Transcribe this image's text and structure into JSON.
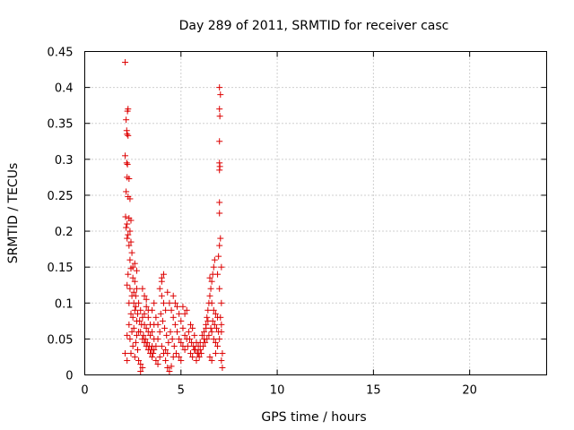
{
  "colors": {
    "point": "#dd0000",
    "grid": "#a0a0a0",
    "frame": "#000000",
    "background": "#ffffff"
  },
  "chart_data": {
    "type": "scatter",
    "title": "Day 289 of 2011, SRMTID for receiver casc",
    "xlabel": "GPS time / hours",
    "ylabel": "SRMTID / TECUs",
    "xlim": [
      0,
      24
    ],
    "ylim": [
      0,
      0.45
    ],
    "x_ticks": [
      0,
      5,
      10,
      15,
      20
    ],
    "x_tick_labels": [
      "0",
      "5",
      "10",
      "15",
      "20"
    ],
    "y_ticks": [
      0,
      0.05,
      0.1,
      0.15,
      0.2,
      0.25,
      0.3,
      0.35,
      0.4,
      0.45
    ],
    "y_tick_labels": [
      "0",
      "0.05",
      "0.1",
      "0.15",
      "0.2",
      "0.25",
      "0.3",
      "0.35",
      "0.4",
      "0.45"
    ],
    "grid": true,
    "marker": "plus",
    "series": [
      {
        "name": "SRMTID",
        "points": [
          [
            2.1,
            0.435
          ],
          [
            2.15,
            0.355
          ],
          [
            2.25,
            0.37
          ],
          [
            2.22,
            0.367
          ],
          [
            2.18,
            0.34
          ],
          [
            2.2,
            0.335
          ],
          [
            2.25,
            0.333
          ],
          [
            2.1,
            0.305
          ],
          [
            2.18,
            0.295
          ],
          [
            2.22,
            0.293
          ],
          [
            2.2,
            0.275
          ],
          [
            2.3,
            0.273
          ],
          [
            2.15,
            0.255
          ],
          [
            2.25,
            0.248
          ],
          [
            2.35,
            0.245
          ],
          [
            2.12,
            0.22
          ],
          [
            2.3,
            0.218
          ],
          [
            2.4,
            0.215
          ],
          [
            2.2,
            0.21
          ],
          [
            2.15,
            0.205
          ],
          [
            2.35,
            0.2
          ],
          [
            2.25,
            0.195
          ],
          [
            2.2,
            0.19
          ],
          [
            2.4,
            0.185
          ],
          [
            2.3,
            0.18
          ],
          [
            2.45,
            0.17
          ],
          [
            2.35,
            0.16
          ],
          [
            2.5,
            0.15
          ],
          [
            2.4,
            0.148
          ],
          [
            2.25,
            0.14
          ],
          [
            2.5,
            0.135
          ],
          [
            2.6,
            0.13
          ],
          [
            2.2,
            0.125
          ],
          [
            2.35,
            0.12
          ],
          [
            2.55,
            0.115
          ],
          [
            2.45,
            0.11
          ],
          [
            2.3,
            0.1
          ],
          [
            2.6,
            0.09
          ],
          [
            2.4,
            0.085
          ],
          [
            2.5,
            0.08
          ],
          [
            2.7,
            0.075
          ],
          [
            2.3,
            0.07
          ],
          [
            2.55,
            0.065
          ],
          [
            2.45,
            0.06
          ],
          [
            2.2,
            0.055
          ],
          [
            2.35,
            0.05
          ],
          [
            2.65,
            0.045
          ],
          [
            2.5,
            0.04
          ],
          [
            2.75,
            0.035
          ],
          [
            2.4,
            0.03
          ],
          [
            2.6,
            0.025
          ],
          [
            2.8,
            0.02
          ],
          [
            2.9,
            0.015
          ],
          [
            3.0,
            0.01
          ],
          [
            2.9,
            0.005
          ],
          [
            2.2,
            0.02
          ],
          [
            2.1,
            0.03
          ],
          [
            2.6,
            0.155
          ],
          [
            2.7,
            0.145
          ],
          [
            2.8,
            0.1
          ],
          [
            2.9,
            0.09
          ],
          [
            3.0,
            0.08
          ],
          [
            3.1,
            0.07
          ],
          [
            3.2,
            0.065
          ],
          [
            3.3,
            0.06
          ],
          [
            3.4,
            0.055
          ],
          [
            2.9,
            0.06
          ],
          [
            3.0,
            0.05
          ],
          [
            3.1,
            0.045
          ],
          [
            3.2,
            0.04
          ],
          [
            3.3,
            0.035
          ],
          [
            3.1,
            0.085
          ],
          [
            3.2,
            0.095
          ],
          [
            3.3,
            0.08
          ],
          [
            3.4,
            0.07
          ],
          [
            3.5,
            0.06
          ],
          [
            3.6,
            0.05
          ],
          [
            3.5,
            0.09
          ],
          [
            3.6,
            0.1
          ],
          [
            3.7,
            0.08
          ],
          [
            3.8,
            0.07
          ],
          [
            3.4,
            0.03
          ],
          [
            3.5,
            0.025
          ],
          [
            3.6,
            0.035
          ],
          [
            3.7,
            0.04
          ],
          [
            3.8,
            0.05
          ],
          [
            3.9,
            0.06
          ],
          [
            4.0,
            0.13
          ],
          [
            3.9,
            0.12
          ],
          [
            4.0,
            0.11
          ],
          [
            4.1,
            0.1
          ],
          [
            4.2,
            0.09
          ],
          [
            3.95,
            0.085
          ],
          [
            4.05,
            0.075
          ],
          [
            4.15,
            0.065
          ],
          [
            4.25,
            0.055
          ],
          [
            4.35,
            0.045
          ],
          [
            4.0,
            0.04
          ],
          [
            4.1,
            0.03
          ],
          [
            4.2,
            0.02
          ],
          [
            4.3,
            0.01
          ],
          [
            4.4,
            0.005
          ],
          [
            4.5,
            0.012
          ],
          [
            4.6,
            0.025
          ],
          [
            4.1,
            0.14
          ],
          [
            4.0,
            0.135
          ],
          [
            4.3,
            0.115
          ],
          [
            4.4,
            0.1
          ],
          [
            4.5,
            0.09
          ],
          [
            4.6,
            0.08
          ],
          [
            4.7,
            0.07
          ],
          [
            4.8,
            0.06
          ],
          [
            4.9,
            0.05
          ],
          [
            5.0,
            0.045
          ],
          [
            5.1,
            0.04
          ],
          [
            5.2,
            0.035
          ],
          [
            4.6,
            0.11
          ],
          [
            4.7,
            0.1
          ],
          [
            4.8,
            0.095
          ],
          [
            4.9,
            0.085
          ],
          [
            5.0,
            0.075
          ],
          [
            5.1,
            0.065
          ],
          [
            5.2,
            0.055
          ],
          [
            5.3,
            0.05
          ],
          [
            5.4,
            0.06
          ],
          [
            5.5,
            0.07
          ],
          [
            5.6,
            0.065
          ],
          [
            5.7,
            0.055
          ],
          [
            5.8,
            0.045
          ],
          [
            5.9,
            0.04
          ],
          [
            6.0,
            0.035
          ],
          [
            5.3,
            0.09
          ],
          [
            5.1,
            0.095
          ],
          [
            5.2,
            0.085
          ],
          [
            5.5,
            0.03
          ],
          [
            5.6,
            0.025
          ],
          [
            5.7,
            0.035
          ],
          [
            5.8,
            0.02
          ],
          [
            5.9,
            0.03
          ],
          [
            6.0,
            0.045
          ],
          [
            6.1,
            0.055
          ],
          [
            6.2,
            0.06
          ],
          [
            6.3,
            0.07
          ],
          [
            6.35,
            0.08
          ],
          [
            6.4,
            0.09
          ],
          [
            6.45,
            0.1
          ],
          [
            6.5,
            0.11
          ],
          [
            6.55,
            0.12
          ],
          [
            6.6,
            0.13
          ],
          [
            6.65,
            0.14
          ],
          [
            6.7,
            0.15
          ],
          [
            6.75,
            0.16
          ],
          [
            6.5,
            0.135
          ],
          [
            6.6,
            0.1
          ],
          [
            6.7,
            0.09
          ],
          [
            6.8,
            0.085
          ],
          [
            6.9,
            0.08
          ],
          [
            6.4,
            0.075
          ],
          [
            6.3,
            0.065
          ],
          [
            6.2,
            0.05
          ],
          [
            6.6,
            0.06
          ],
          [
            6.7,
            0.05
          ],
          [
            6.8,
            0.045
          ],
          [
            6.9,
            0.04
          ],
          [
            7.0,
            0.05
          ],
          [
            7.1,
            0.06
          ],
          [
            7.0,
            0.4
          ],
          [
            7.05,
            0.39
          ],
          [
            7.0,
            0.37
          ],
          [
            7.02,
            0.36
          ],
          [
            7.0,
            0.325
          ],
          [
            7.0,
            0.295
          ],
          [
            7.02,
            0.29
          ],
          [
            7.0,
            0.285
          ],
          [
            7.0,
            0.24
          ],
          [
            7.0,
            0.225
          ],
          [
            7.05,
            0.19
          ],
          [
            7.0,
            0.18
          ],
          [
            6.95,
            0.165
          ],
          [
            7.1,
            0.15
          ],
          [
            6.9,
            0.14
          ],
          [
            7.0,
            0.12
          ],
          [
            7.1,
            0.1
          ],
          [
            7.05,
            0.08
          ],
          [
            7.1,
            0.07
          ],
          [
            7.15,
            0.03
          ],
          [
            7.1,
            0.02
          ],
          [
            7.15,
            0.01
          ],
          [
            6.8,
            0.03
          ],
          [
            3.0,
            0.12
          ],
          [
            3.1,
            0.11
          ],
          [
            3.2,
            0.105
          ],
          [
            2.8,
            0.06
          ],
          [
            2.7,
            0.055
          ],
          [
            3.5,
            0.04
          ],
          [
            3.7,
            0.02
          ],
          [
            3.8,
            0.015
          ],
          [
            4.45,
            0.06
          ],
          [
            4.55,
            0.05
          ],
          [
            4.65,
            0.04
          ],
          [
            4.75,
            0.03
          ],
          [
            5.35,
            0.04
          ],
          [
            5.45,
            0.05
          ],
          [
            5.55,
            0.045
          ],
          [
            5.65,
            0.04
          ],
          [
            5.75,
            0.035
          ],
          [
            5.85,
            0.03
          ],
          [
            5.95,
            0.025
          ],
          [
            6.05,
            0.03
          ],
          [
            2.55,
            0.1
          ],
          [
            2.65,
            0.095
          ],
          [
            2.75,
            0.085
          ],
          [
            2.85,
            0.075
          ],
          [
            2.95,
            0.07
          ],
          [
            3.05,
            0.055
          ],
          [
            3.15,
            0.05
          ],
          [
            3.25,
            0.045
          ],
          [
            3.35,
            0.04
          ],
          [
            3.45,
            0.035
          ],
          [
            3.55,
            0.03
          ],
          [
            6.15,
            0.04
          ],
          [
            6.25,
            0.045
          ],
          [
            6.35,
            0.05
          ],
          [
            6.45,
            0.055
          ],
          [
            6.55,
            0.065
          ],
          [
            6.65,
            0.075
          ],
          [
            6.75,
            0.07
          ],
          [
            6.85,
            0.065
          ],
          [
            6.95,
            0.06
          ],
          [
            6.5,
            0.025
          ],
          [
            6.6,
            0.02
          ],
          [
            5.0,
            0.02
          ],
          [
            4.9,
            0.025
          ],
          [
            4.2,
            0.035
          ],
          [
            4.3,
            0.03
          ],
          [
            3.9,
            0.025
          ],
          [
            3.6,
            0.07
          ],
          [
            3.3,
            0.09
          ],
          [
            2.7,
            0.12
          ],
          [
            2.65,
            0.11
          ]
        ]
      }
    ]
  }
}
